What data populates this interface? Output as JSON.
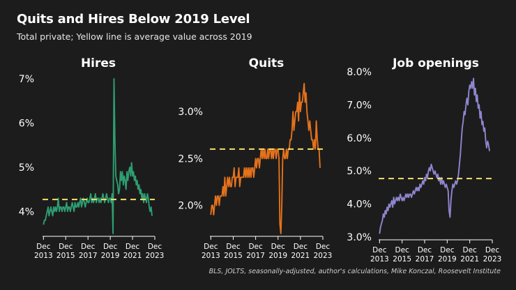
{
  "header": {
    "title": "Quits and Hires Below 2019 Level",
    "subtitle": "Total private; Yellow line is average value across 2019"
  },
  "footer": {
    "source": "BLS, JOLTS, seasonally-adjusted, author's calculations, Mike Konczal, Roosevelt Institute"
  },
  "colors": {
    "background": "#1c1c1c",
    "reference_line": "#f2e06b",
    "axis": "#ffffff",
    "hires": "#2e9e72",
    "quits": "#e5721c",
    "job_openings": "#8f86cf"
  },
  "chart_data": [
    {
      "type": "line",
      "title": "Hires",
      "series": [
        {
          "color": "#2e9e72",
          "x_start": "2013-12",
          "values": [
            3.7,
            3.8,
            3.8,
            3.9,
            4.0,
            4.1,
            3.9,
            4.0,
            4.1,
            4.0,
            3.9,
            4.1,
            4.0,
            4.1,
            4.0,
            4.1,
            4.3,
            4.0,
            4.1,
            4.1,
            4.0,
            4.1,
            4.1,
            4.0,
            4.1,
            4.2,
            4.0,
            4.1,
            4.1,
            4.0,
            4.1,
            4.2,
            4.1,
            4.0,
            4.2,
            4.1,
            4.1,
            4.2,
            4.1,
            4.2,
            4.3,
            4.1,
            4.2,
            4.3,
            4.2,
            4.1,
            4.2,
            4.3,
            4.2,
            4.2,
            4.3,
            4.4,
            4.2,
            4.3,
            4.2,
            4.3,
            4.4,
            4.2,
            4.3,
            4.3,
            4.2,
            4.3,
            4.2,
            4.3,
            4.4,
            4.3,
            4.2,
            4.3,
            4.4,
            4.3,
            4.2,
            4.3,
            4.3,
            4.2,
            4.4,
            3.5,
            7.0,
            5.6,
            4.8,
            4.7,
            4.6,
            4.4,
            4.5,
            4.9,
            4.7,
            4.9,
            4.6,
            4.8,
            4.7,
            4.5,
            4.9,
            4.7,
            4.9,
            5.0,
            4.8,
            5.1,
            4.8,
            4.9,
            4.7,
            4.8,
            4.6,
            4.7,
            4.5,
            4.6,
            4.4,
            4.5,
            4.3,
            4.4,
            4.2,
            4.4,
            4.3,
            4.2,
            4.4,
            4.3,
            4.1,
            4.0,
            4.1,
            3.9
          ]
        }
      ],
      "reference": {
        "value": 4.27
      },
      "x_ticks": [
        {
          "value": "2013-12",
          "line1": "Dec",
          "line2": "2013"
        },
        {
          "value": "2015-12",
          "line1": "Dec",
          "line2": "2015"
        },
        {
          "value": "2017-12",
          "line1": "Dec",
          "line2": "2017"
        },
        {
          "value": "2019-12",
          "line1": "Dec",
          "line2": "2019"
        },
        {
          "value": "2021-12",
          "line1": "Dec",
          "line2": "2021"
        },
        {
          "value": "2023-12",
          "line1": "Dec",
          "line2": "2023"
        }
      ],
      "x_range": [
        "2013-11",
        "2023-12"
      ],
      "y_ticks": [
        {
          "value": 4,
          "label": "4%"
        },
        {
          "value": 5,
          "label": "5%"
        },
        {
          "value": 6,
          "label": "6%"
        },
        {
          "value": 7,
          "label": "7%"
        }
      ],
      "ylim": [
        3.5,
        7.0
      ],
      "grid": false,
      "legend": "none"
    },
    {
      "type": "line",
      "title": "Quits",
      "series": [
        {
          "color": "#e5721c",
          "x_start": "2013-12",
          "values": [
            1.9,
            2.0,
            2.0,
            1.9,
            2.0,
            2.1,
            2.0,
            2.1,
            2.1,
            2.0,
            2.1,
            2.1,
            2.1,
            2.2,
            2.1,
            2.3,
            2.1,
            2.2,
            2.3,
            2.2,
            2.3,
            2.2,
            2.2,
            2.3,
            2.3,
            2.4,
            2.2,
            2.3,
            2.3,
            2.3,
            2.4,
            2.2,
            2.3,
            2.3,
            2.3,
            2.3,
            2.4,
            2.3,
            2.4,
            2.3,
            2.4,
            2.3,
            2.4,
            2.3,
            2.4,
            2.4,
            2.3,
            2.4,
            2.5,
            2.4,
            2.5,
            2.5,
            2.4,
            2.5,
            2.6,
            2.5,
            2.6,
            2.5,
            2.6,
            2.5,
            2.5,
            2.6,
            2.5,
            2.6,
            2.6,
            2.5,
            2.6,
            2.5,
            2.6,
            2.6,
            2.5,
            2.6,
            2.6,
            2.5,
            1.8,
            1.7,
            2.0,
            2.5,
            2.6,
            2.5,
            2.5,
            2.6,
            2.5,
            2.6,
            2.6,
            2.7,
            2.7,
            2.8,
            3.0,
            2.8,
            2.9,
            3.0,
            3.0,
            3.1,
            2.9,
            3.2,
            3.0,
            3.1,
            3.1,
            3.2,
            3.3,
            3.1,
            3.2,
            3.0,
            2.9,
            2.8,
            2.9,
            2.8,
            2.7,
            2.7,
            2.6,
            2.7,
            2.6,
            2.9,
            2.7,
            2.6,
            2.6,
            2.4
          ]
        }
      ],
      "reference": {
        "value": 2.6
      },
      "x_ticks": [
        {
          "value": "2013-12",
          "line1": "Dec",
          "line2": "2013"
        },
        {
          "value": "2015-12",
          "line1": "Dec",
          "line2": "2015"
        },
        {
          "value": "2017-12",
          "line1": "Dec",
          "line2": "2017"
        },
        {
          "value": "2019-12",
          "line1": "Dec",
          "line2": "2019"
        },
        {
          "value": "2021-12",
          "line1": "Dec",
          "line2": "2021"
        },
        {
          "value": "2023-12",
          "line1": "Dec",
          "line2": "2023"
        }
      ],
      "x_range": [
        "2013-11",
        "2023-12"
      ],
      "y_ticks": [
        {
          "value": 2.0,
          "label": "2.0%"
        },
        {
          "value": 2.5,
          "label": "2.5%"
        },
        {
          "value": 3.0,
          "label": "3.0%"
        }
      ],
      "ylim": [
        1.7,
        3.35
      ],
      "grid": false,
      "legend": "none"
    },
    {
      "type": "line",
      "title": "Job openings",
      "series": [
        {
          "color": "#8f86cf",
          "x_start": "2013-12",
          "values": [
            3.1,
            3.3,
            3.4,
            3.5,
            3.7,
            3.6,
            3.8,
            3.7,
            3.9,
            3.8,
            4.0,
            3.9,
            4.0,
            4.1,
            3.9,
            4.2,
            4.0,
            4.1,
            4.2,
            4.1,
            4.2,
            4.1,
            4.3,
            4.2,
            4.1,
            4.2,
            4.1,
            4.2,
            4.3,
            4.2,
            4.3,
            4.2,
            4.3,
            4.3,
            4.2,
            4.3,
            4.4,
            4.3,
            4.4,
            4.5,
            4.4,
            4.5,
            4.4,
            4.6,
            4.5,
            4.6,
            4.7,
            4.6,
            4.8,
            4.7,
            4.9,
            4.8,
            5.0,
            5.1,
            5.0,
            5.2,
            5.1,
            5.0,
            4.9,
            5.0,
            4.9,
            4.8,
            4.9,
            4.7,
            4.8,
            4.6,
            4.8,
            4.6,
            4.7,
            4.6,
            4.5,
            4.6,
            4.5,
            4.4,
            3.8,
            3.6,
            4.1,
            4.4,
            4.6,
            4.5,
            4.6,
            4.7,
            4.6,
            4.7,
            4.9,
            5.2,
            5.5,
            5.9,
            6.3,
            6.5,
            6.8,
            6.7,
            7.0,
            7.2,
            7.0,
            7.4,
            7.6,
            7.5,
            7.7,
            7.5,
            7.8,
            7.3,
            7.5,
            7.1,
            7.3,
            6.9,
            7.0,
            6.6,
            6.8,
            6.4,
            6.5,
            6.2,
            6.3,
            5.9,
            5.7,
            5.9,
            5.8,
            5.6
          ]
        }
      ],
      "reference": {
        "value": 4.77
      },
      "x_ticks": [
        {
          "value": "2013-12",
          "line1": "Dec",
          "line2": "2013"
        },
        {
          "value": "2015-12",
          "line1": "Dec",
          "line2": "2015"
        },
        {
          "value": "2017-12",
          "line1": "Dec",
          "line2": "2017"
        },
        {
          "value": "2019-12",
          "line1": "Dec",
          "line2": "2019"
        },
        {
          "value": "2021-12",
          "line1": "Dec",
          "line2": "2021"
        },
        {
          "value": "2023-12",
          "line1": "Dec",
          "line2": "2023"
        }
      ],
      "x_range": [
        "2013-11",
        "2023-12"
      ],
      "y_ticks": [
        {
          "value": 3,
          "label": "3.0%"
        },
        {
          "value": 4,
          "label": "4.0%"
        },
        {
          "value": 5,
          "label": "5.0%"
        },
        {
          "value": 6,
          "label": "6.0%"
        },
        {
          "value": 7,
          "label": "7.0%"
        },
        {
          "value": 8,
          "label": "8.0%"
        }
      ],
      "ylim": [
        3.0,
        8.0
      ],
      "grid": false,
      "legend": "none"
    }
  ]
}
